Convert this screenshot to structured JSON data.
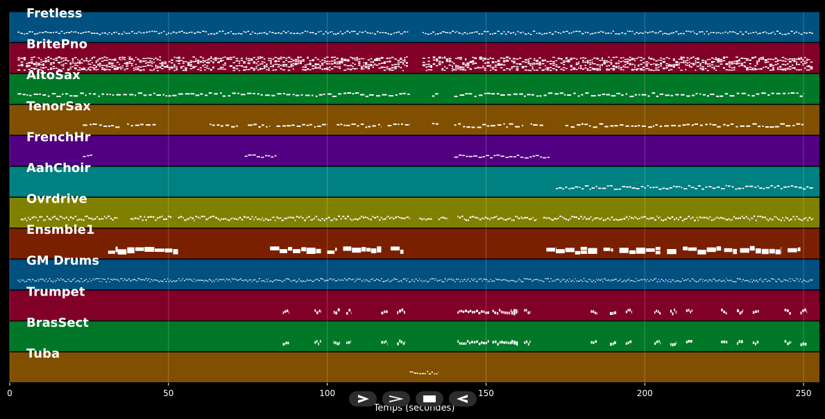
{
  "chart_data": {
    "type": "piano-roll",
    "xlabel": "Temps (secondes)",
    "xlim": [
      0,
      255
    ],
    "xticks": [
      0,
      50,
      100,
      150,
      200,
      250
    ],
    "grid": true,
    "tracks": [
      {
        "name": "Fretless",
        "color": "#005080",
        "segments": [
          [
            2.5,
            125.5,
            0.9
          ],
          [
            130,
            253,
            0.9
          ]
        ],
        "pattern": "bass"
      },
      {
        "name": "BritePno",
        "color": "#800028",
        "segments": [
          [
            2.5,
            125.5,
            2.6
          ],
          [
            130,
            253,
            2.6
          ]
        ],
        "pattern": "dense"
      },
      {
        "name": "AltoSax",
        "color": "#007828",
        "segments": [
          [
            2.5,
            126,
            1.0
          ],
          [
            133,
            135,
            1.3
          ],
          [
            140,
            250,
            1.0
          ]
        ],
        "pattern": "melody"
      },
      {
        "name": "TenorSax",
        "color": "#805000",
        "segments": [
          [
            23,
            35,
            1.0
          ],
          [
            37,
            46,
            1.0
          ],
          [
            63,
            72,
            1.0
          ],
          [
            75,
            82,
            1.0
          ],
          [
            84,
            100,
            1.0
          ],
          [
            103,
            117,
            1.0
          ],
          [
            119,
            126,
            1.0
          ],
          [
            133,
            135,
            1.3
          ],
          [
            140,
            162,
            1.0
          ],
          [
            164,
            168,
            1.0
          ],
          [
            175,
            250,
            1.0
          ]
        ],
        "pattern": "melody"
      },
      {
        "name": "FrenchHr",
        "color": "#500080",
        "segments": [
          [
            23,
            26,
            0.8
          ],
          [
            74,
            84,
            0.9
          ],
          [
            140,
            170,
            0.9
          ]
        ],
        "pattern": "pad"
      },
      {
        "name": "AahChoir",
        "color": "#008080",
        "segments": [
          [
            172,
            253,
            1.1
          ]
        ],
        "pattern": "choir"
      },
      {
        "name": "Ovrdrive",
        "color": "#808000",
        "segments": [
          [
            3.5,
            34,
            1.4
          ],
          [
            38,
            51,
            1.4
          ],
          [
            53,
            126,
            1.4
          ],
          [
            129,
            133,
            0.9
          ],
          [
            135,
            138,
            0.9
          ],
          [
            141,
            166,
            1.4
          ],
          [
            168,
            253,
            1.4
          ]
        ],
        "pattern": "riff"
      },
      {
        "name": "Ensmble1",
        "color": "#7a2000",
        "segments": [
          [
            31,
            34,
            1.7
          ],
          [
            34,
            53,
            1.9
          ],
          [
            82,
            85,
            1.7
          ],
          [
            85,
            98,
            1.9
          ],
          [
            100,
            103,
            1.7
          ],
          [
            105,
            117,
            1.9
          ],
          [
            120,
            124,
            1.7
          ],
          [
            169,
            172,
            1.7
          ],
          [
            172,
            185,
            1.9
          ],
          [
            187,
            190,
            1.7
          ],
          [
            192,
            205,
            1.9
          ],
          [
            207,
            210,
            1.7
          ],
          [
            212,
            224,
            1.9
          ],
          [
            225,
            229,
            1.7
          ],
          [
            230,
            243,
            1.9
          ],
          [
            245,
            249,
            1.7
          ]
        ],
        "pattern": "strings"
      },
      {
        "name": "GM Drums",
        "color": "#005080",
        "segments": [
          [
            2.5,
            253,
            1.0
          ]
        ],
        "pattern": "drums"
      },
      {
        "name": "Trumpet",
        "color": "#800028",
        "segments": [
          [
            86,
            88,
            1.0
          ],
          [
            96,
            98,
            1.0
          ],
          [
            102,
            104,
            1.3
          ],
          [
            106,
            107.5,
            1.0
          ],
          [
            117,
            119,
            1.0
          ],
          [
            122,
            124.5,
            1.3
          ],
          [
            141,
            151,
            0.8
          ],
          [
            152,
            158,
            1.0
          ],
          [
            158,
            160,
            1.5
          ],
          [
            162,
            164,
            1.0
          ],
          [
            183,
            185,
            1.0
          ],
          [
            189,
            191,
            1.3
          ],
          [
            194,
            196,
            1.0
          ],
          [
            203,
            205,
            1.0
          ],
          [
            208,
            210,
            1.3
          ],
          [
            213,
            215,
            1.0
          ],
          [
            224,
            226,
            1.0
          ],
          [
            229,
            231,
            1.3
          ],
          [
            234,
            236,
            1.0
          ],
          [
            244,
            246,
            1.0
          ],
          [
            249,
            251,
            1.3
          ]
        ],
        "pattern": "stabs"
      },
      {
        "name": "BrasSect",
        "color": "#007828",
        "segments": [
          [
            86,
            88,
            1.0
          ],
          [
            96,
            98,
            1.0
          ],
          [
            102,
            104,
            1.3
          ],
          [
            106,
            107.5,
            1.0
          ],
          [
            117,
            119,
            1.0
          ],
          [
            122,
            124.5,
            1.3
          ],
          [
            141,
            151,
            0.8
          ],
          [
            152,
            158,
            1.0
          ],
          [
            158,
            160,
            1.5
          ],
          [
            162,
            164,
            1.0
          ],
          [
            183,
            185,
            1.0
          ],
          [
            189,
            191,
            1.3
          ],
          [
            194,
            196,
            1.0
          ],
          [
            203,
            205,
            1.0
          ],
          [
            208,
            210,
            1.3
          ],
          [
            213,
            215,
            1.0
          ],
          [
            224,
            226,
            1.0
          ],
          [
            229,
            231,
            1.3
          ],
          [
            234,
            236,
            1.0
          ],
          [
            244,
            246,
            1.0
          ],
          [
            249,
            251,
            1.3
          ]
        ],
        "pattern": "stabs"
      },
      {
        "name": "Tuba",
        "color": "#805000",
        "segments": [
          [
            126,
            135,
            0.9
          ]
        ],
        "pattern": "bass"
      }
    ]
  },
  "colors": {
    "background": "#000000",
    "notes": "#ffffff",
    "grid": "#ffffff"
  },
  "transport": [
    {
      "name": "play-icon"
    },
    {
      "name": "fast-forward-icon"
    },
    {
      "name": "stop-icon"
    },
    {
      "name": "rewind-icon"
    }
  ]
}
